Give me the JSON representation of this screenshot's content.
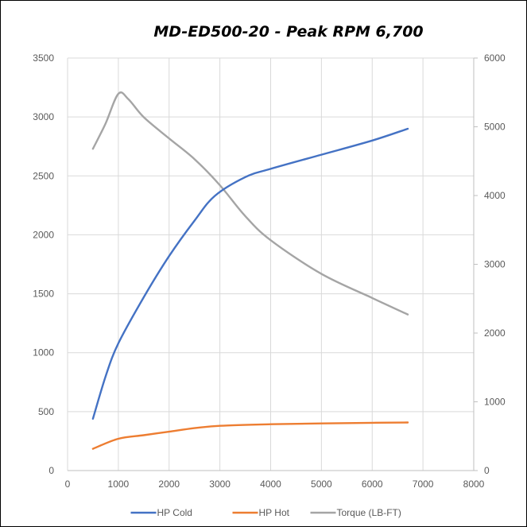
{
  "chart_data": {
    "type": "line",
    "title": "MD-ED500-20 - Peak RPM 6,700",
    "xlabel": "",
    "ylabel": "",
    "y2label": "",
    "xlim": [
      0,
      8000
    ],
    "ylim": [
      0,
      3500
    ],
    "y2lim": [
      0,
      6000
    ],
    "x_ticks": [
      0,
      1000,
      2000,
      3000,
      4000,
      5000,
      6000,
      7000,
      8000
    ],
    "y_ticks": [
      0,
      500,
      1000,
      1500,
      2000,
      2500,
      3000,
      3500
    ],
    "y2_ticks": [
      0,
      1000,
      2000,
      3000,
      4000,
      5000,
      6000
    ],
    "grid": true,
    "legend_position": "bottom",
    "series": [
      {
        "name": "HP Cold",
        "axis": "left",
        "color": "#4472c4",
        "points": [
          [
            500,
            440
          ],
          [
            750,
            800
          ],
          [
            1000,
            1080
          ],
          [
            1500,
            1470
          ],
          [
            2000,
            1820
          ],
          [
            2500,
            2120
          ],
          [
            2900,
            2330
          ],
          [
            3500,
            2490
          ],
          [
            4000,
            2560
          ],
          [
            5000,
            2680
          ],
          [
            6000,
            2800
          ],
          [
            6700,
            2900
          ]
        ]
      },
      {
        "name": "HP Hot",
        "axis": "left",
        "color": "#ed7d31",
        "points": [
          [
            500,
            185
          ],
          [
            1000,
            270
          ],
          [
            1500,
            300
          ],
          [
            2000,
            330
          ],
          [
            2500,
            360
          ],
          [
            3000,
            380
          ],
          [
            4000,
            393
          ],
          [
            5000,
            400
          ],
          [
            6000,
            405
          ],
          [
            6700,
            408
          ]
        ]
      },
      {
        "name": "Torque (LB-FT)",
        "axis": "right",
        "color": "#a5a5a5",
        "points": [
          [
            500,
            4680
          ],
          [
            750,
            5050
          ],
          [
            1000,
            5480
          ],
          [
            1200,
            5400
          ],
          [
            1500,
            5140
          ],
          [
            2000,
            4830
          ],
          [
            2500,
            4530
          ],
          [
            3000,
            4150
          ],
          [
            3500,
            3700
          ],
          [
            4000,
            3350
          ],
          [
            5000,
            2860
          ],
          [
            6000,
            2510
          ],
          [
            6700,
            2270
          ]
        ]
      }
    ]
  }
}
